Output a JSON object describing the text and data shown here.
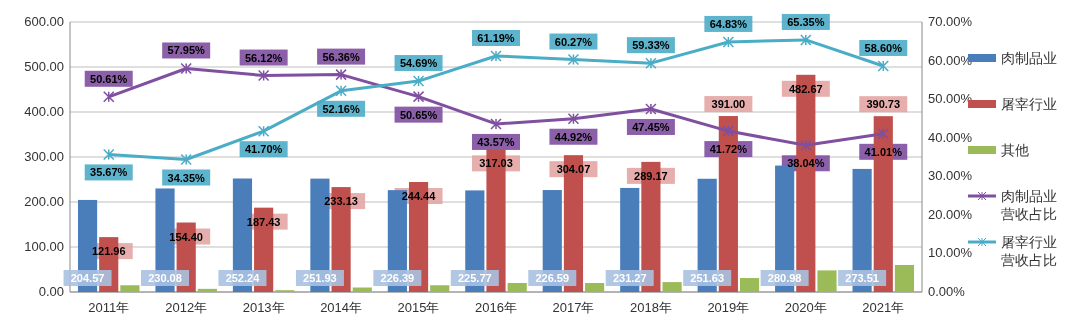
{
  "chart_data": {
    "type": "bar",
    "categories": [
      "2011年",
      "2012年",
      "2013年",
      "2014年",
      "2015年",
      "2016年",
      "2017年",
      "2018年",
      "2019年",
      "2020年",
      "2021年"
    ],
    "series": [
      {
        "name": "肉制品业",
        "type": "bar",
        "color": "#4a7ebb",
        "values": [
          204.57,
          230.08,
          252.24,
          251.93,
          226.39,
          225.77,
          226.59,
          231.27,
          251.63,
          280.98,
          273.51
        ],
        "value_labels": [
          "204.57",
          "230.08",
          "252.24",
          "251.93",
          "226.39",
          "225.77",
          "226.59",
          "231.27",
          "251.63",
          "280.98",
          "273.51"
        ]
      },
      {
        "name": "屠宰行业",
        "type": "bar",
        "color": "#c0504d",
        "values": [
          121.96,
          154.4,
          187.43,
          233.13,
          244.44,
          317.03,
          304.07,
          289.17,
          391.0,
          482.67,
          390.73
        ],
        "value_labels": [
          "121.96",
          "154.40",
          "187.43",
          "233.13",
          "244.44",
          "317.03",
          "304.07",
          "289.17",
          "391.00",
          "482.67",
          "390.73"
        ]
      },
      {
        "name": "其他",
        "color": "#9bbb59",
        "values": [
          15,
          7,
          4,
          10,
          15,
          20,
          20,
          22,
          31,
          48,
          60
        ]
      },
      {
        "name": "肉制品业营收占比",
        "type": "line",
        "axis": "y2",
        "color": "#7f4fa0",
        "values": [
          50.61,
          57.95,
          56.12,
          56.36,
          50.65,
          43.57,
          44.92,
          47.45,
          41.72,
          38.04,
          41.01
        ],
        "value_labels": [
          "50.61%",
          "57.95%",
          "56.12%",
          "56.36%",
          "50.65%",
          "43.57%",
          "44.92%",
          "47.45%",
          "41.72%",
          "38.04%",
          "41.01%"
        ]
      },
      {
        "name": "屠宰行业营收占比",
        "type": "line",
        "axis": "y2",
        "color": "#4bacc6",
        "values": [
          35.67,
          34.35,
          41.7,
          52.16,
          54.69,
          61.19,
          60.27,
          59.33,
          64.83,
          65.35,
          58.6
        ],
        "value_labels": [
          "35.67%",
          "34.35%",
          "41.70%",
          "52.16%",
          "54.69%",
          "61.19%",
          "60.27%",
          "59.33%",
          "64.83%",
          "65.35%",
          "58.60%"
        ]
      }
    ],
    "ylim": [
      0,
      600
    ],
    "yticks": [
      {
        "value": 0,
        "label": "0.00"
      },
      {
        "value": 100,
        "label": "100.00"
      },
      {
        "value": 200,
        "label": "200.00"
      },
      {
        "value": 300,
        "label": "300.00"
      },
      {
        "value": 400,
        "label": "400.00"
      },
      {
        "value": 500,
        "label": "500.00"
      },
      {
        "value": 600,
        "label": "600.00"
      }
    ],
    "y2lim": [
      0,
      70
    ],
    "y2ticks": [
      {
        "value": 0,
        "label": "0.00%"
      },
      {
        "value": 10,
        "label": "10.00%"
      },
      {
        "value": 20,
        "label": "20.00%"
      },
      {
        "value": 30,
        "label": "30.00%"
      },
      {
        "value": 40,
        "label": "40.00%"
      },
      {
        "value": 50,
        "label": "50.00%"
      },
      {
        "value": 60,
        "label": "60.00%"
      },
      {
        "value": 70,
        "label": "70.00%"
      }
    ],
    "grid": "y",
    "legend": "right",
    "marker": "cross",
    "line_style": "solid"
  }
}
